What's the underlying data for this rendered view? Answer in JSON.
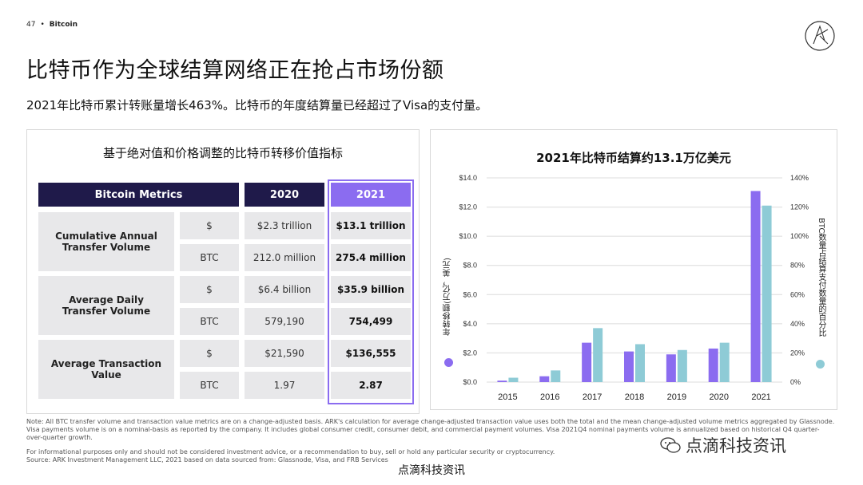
{
  "header": {
    "page_number": "47",
    "separator": "•",
    "section": "Bitcoin"
  },
  "title": "比特币作为全球结算网络正在抢占市场份额",
  "subtitle": "2021年比特币累计转账量增长463%。比特币的年度结算量已经超过了Visa的支付量。",
  "table": {
    "title": "基于绝对值和价格调整的比特币转移价值指标",
    "headers": [
      "Bitcoin Metrics",
      "2020",
      "2021"
    ],
    "rows": [
      {
        "metric": "Cumulative Annual Transfer Volume",
        "sub": [
          {
            "unit": "$",
            "v2020": "$2.3 trillion",
            "v2021": "$13.1 trillion"
          },
          {
            "unit": "BTC",
            "v2020": "212.0 million",
            "v2021": "275.4 million"
          }
        ]
      },
      {
        "metric": "Average Daily Transfer Volume",
        "sub": [
          {
            "unit": "$",
            "v2020": "$6.4 billion",
            "v2021": "$35.9 billion"
          },
          {
            "unit": "BTC",
            "v2020": "579,190",
            "v2021": "754,499"
          }
        ]
      },
      {
        "metric": "Average Transaction Value",
        "sub": [
          {
            "unit": "$",
            "v2020": "$21,590",
            "v2021": "$136,555"
          },
          {
            "unit": "BTC",
            "v2020": "1.97",
            "v2021": "2.87"
          }
        ]
      }
    ]
  },
  "chart_data": {
    "type": "bar",
    "title": "2021年比特币结算约13.1万亿美元",
    "categories": [
      "2015",
      "2016",
      "2017",
      "2018",
      "2019",
      "2020",
      "2021"
    ],
    "series": [
      {
        "name": "年转移额(万亿，美元)",
        "axis": "left",
        "color": "#8b6cf0",
        "values": [
          0.1,
          0.4,
          2.7,
          2.1,
          1.9,
          2.3,
          13.1
        ]
      },
      {
        "name": "BTC数量占结算支付数量的百分比",
        "axis": "right",
        "color": "#8ecbd6",
        "values": [
          3,
          8,
          37,
          26,
          22,
          27,
          121
        ]
      }
    ],
    "ylabel_left": "年转移额(万亿，美元)",
    "ylabel_right": "BTC数量占结算支付数量的百分比",
    "ylim_left": [
      0,
      14
    ],
    "ylim_right": [
      0,
      140
    ],
    "yticks_left": [
      "$0.0",
      "$2.0",
      "$4.0",
      "$6.0",
      "$8.0",
      "$10.0",
      "$12.0",
      "$14.0"
    ],
    "yticks_right": [
      "0%",
      "20%",
      "40%",
      "60%",
      "80%",
      "100%",
      "120%",
      "140%"
    ],
    "grid": true,
    "legend": "axis-labels"
  },
  "notes": {
    "line1": "Note: All BTC transfer volume and transaction value metrics are on a change-adjusted basis. ARK's calculation for average change-adjusted transaction value uses both the total and the mean change-adjusted volume metrics aggregated by Glassnode.",
    "line2": "Visa payments volume is on a nominal-basis as reported by the company. It includes global consumer credit, consumer debit, and commercial payment volumes. Visa 2021Q4 nominal payments volume is annualized based on historical Q4 quarter-",
    "line3": "over-quarter growth.",
    "disclaimer": "For informational purposes only and should not be considered investment advice, or a recommendation to buy, sell or hold any particular security or cryptocurrency.",
    "source": "Source: ARK Investment Management LLC, 2021 based on data sourced from: Glassnode, Visa, and FRB Services"
  },
  "footer_brand": "点滴科技资讯",
  "watermark": "点滴科技资讯"
}
